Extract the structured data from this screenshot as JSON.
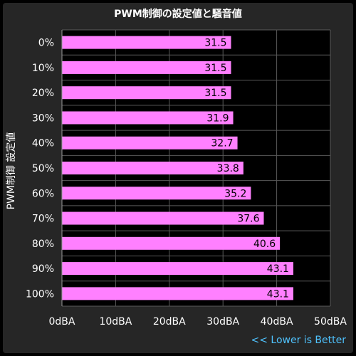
{
  "chart_data": {
    "type": "bar",
    "orientation": "horizontal",
    "title": "PWM制御の設定値と騒音値",
    "ylabel": "PWM制御 設定値",
    "xlabel": "",
    "categories": [
      "0%",
      "10%",
      "20%",
      "30%",
      "40%",
      "50%",
      "60%",
      "70%",
      "80%",
      "90%",
      "100%"
    ],
    "values": [
      31.5,
      31.5,
      31.5,
      31.9,
      32.7,
      33.8,
      35.2,
      37.6,
      40.6,
      43.1,
      43.1
    ],
    "xlim": [
      0,
      50
    ],
    "x_ticks": [
      "0dBA",
      "10dBA",
      "20dBA",
      "30dBA",
      "40dBA",
      "50dBA"
    ],
    "grid": true,
    "bar_color": "#ff80ff",
    "background_color": "#000000",
    "footnote": "<< Lower is Better",
    "footnote_color": "#4fc3ff"
  }
}
